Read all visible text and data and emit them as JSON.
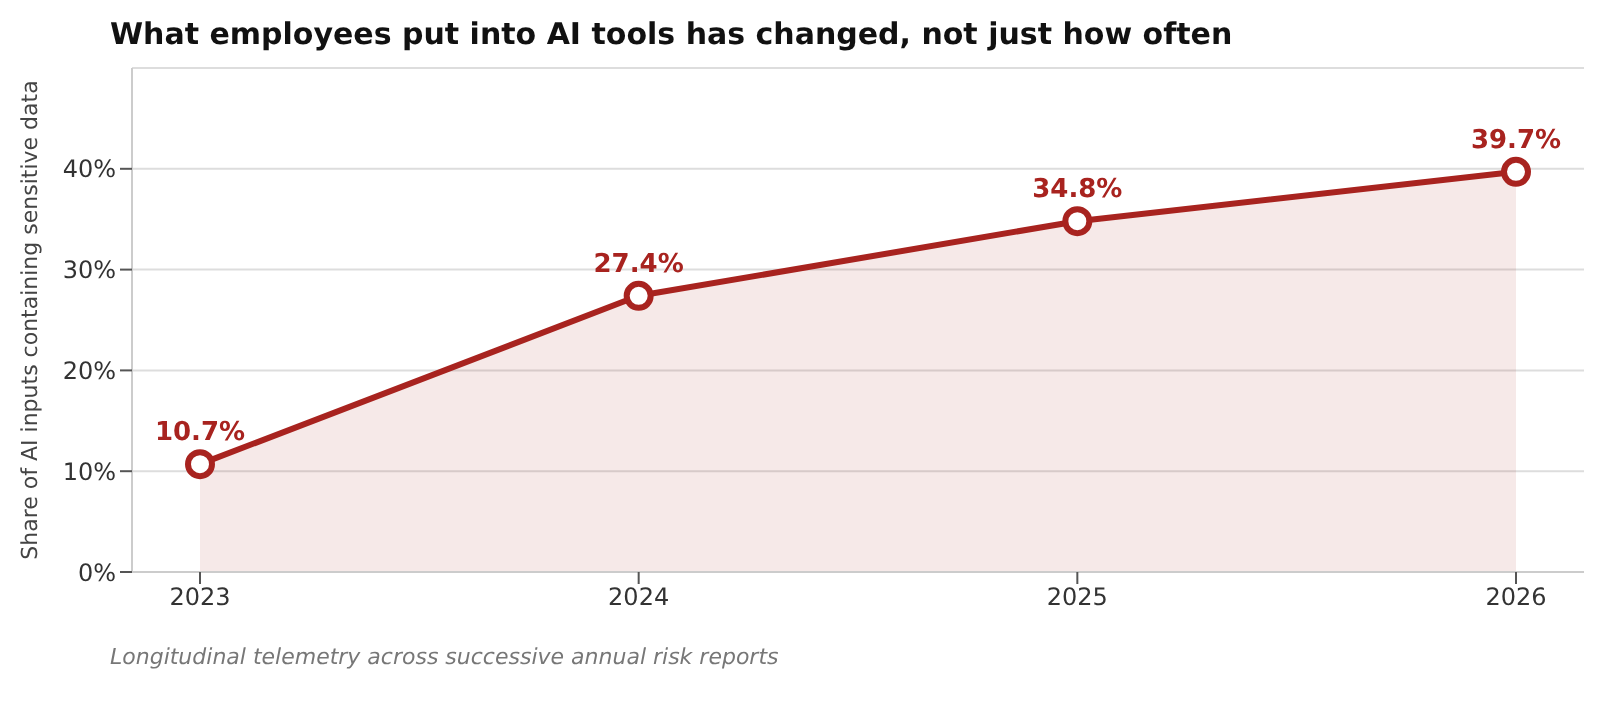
{
  "chart_data": {
    "type": "area",
    "title": "What employees put into AI tools has changed, not just how often",
    "ylabel": "Share of AI inputs containing sensitive data",
    "annotations": [
      "Longitudinal telemetry across successive annual risk reports"
    ],
    "categories": [
      "2023",
      "2024",
      "2025",
      "2026"
    ],
    "series": [
      {
        "color": "#a8231f",
        "values": [
          10.7,
          27.4,
          34.8,
          39.7
        ],
        "value_labels": [
          "10.7%",
          "27.4%",
          "34.8%",
          "39.7%"
        ]
      }
    ],
    "ylim": [
      0,
      50
    ],
    "yticks": [
      {
        "value": 0,
        "label": "0%"
      },
      {
        "value": 10,
        "label": "10%"
      },
      {
        "value": 20,
        "label": "20%"
      },
      {
        "value": 30,
        "label": "30%"
      },
      {
        "value": 40,
        "label": "40%"
      }
    ],
    "grid": "y",
    "marker": "circle",
    "line_style": "solid"
  }
}
